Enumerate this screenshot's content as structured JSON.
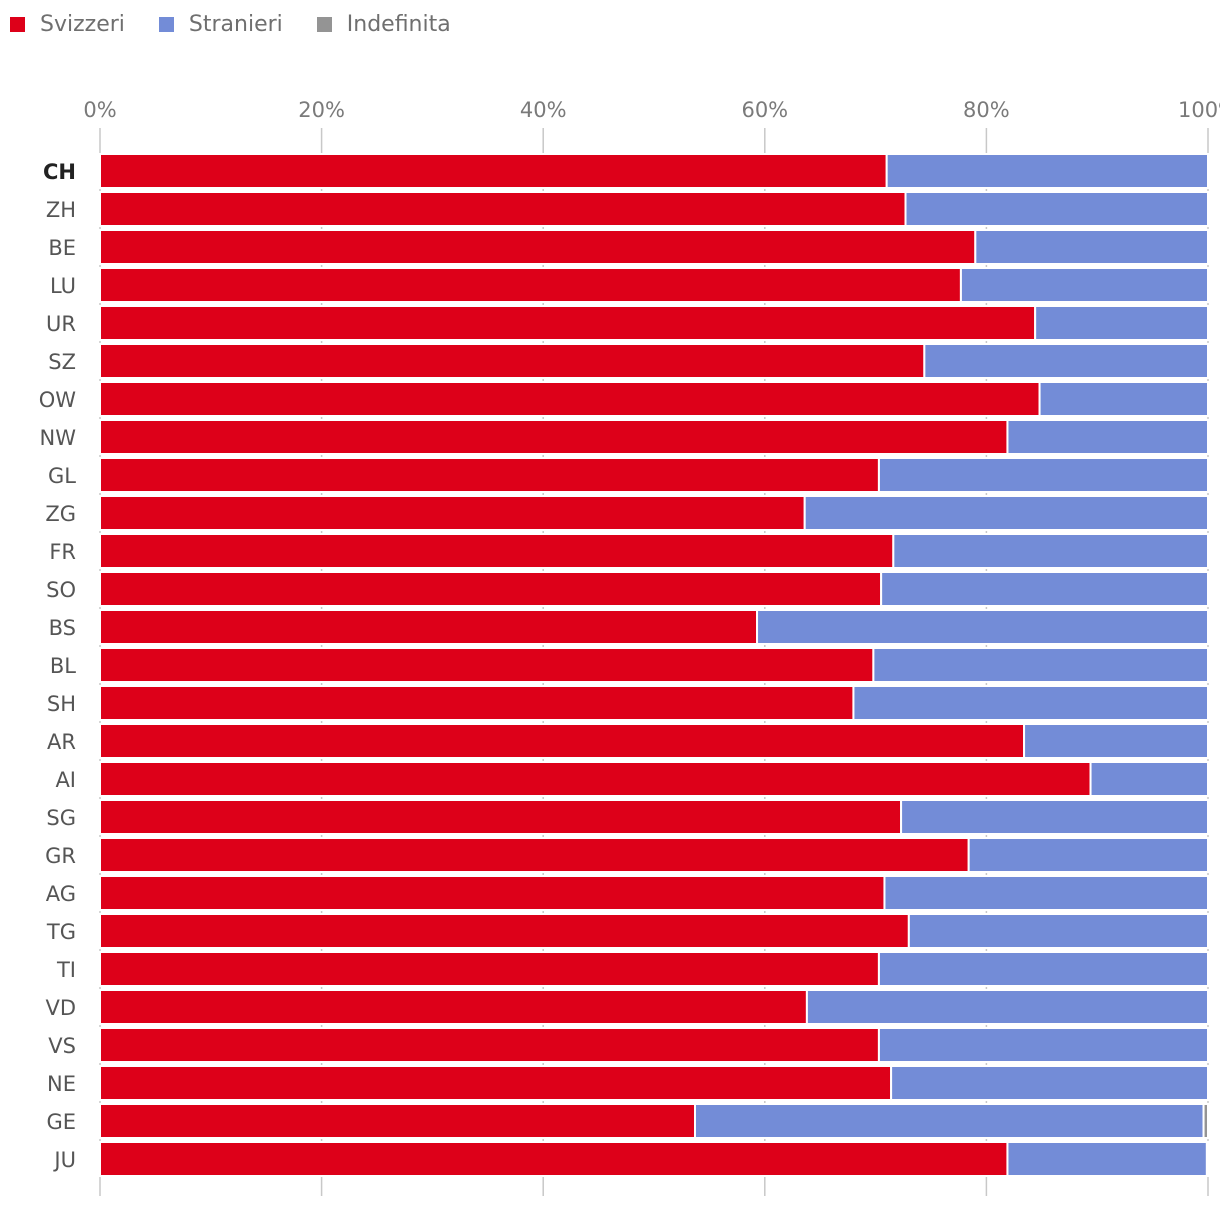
{
  "chart_data": {
    "type": "bar",
    "orientation": "horizontal",
    "stacked": true,
    "normalized": true,
    "title": "",
    "xlabel": "",
    "ylabel": "",
    "xlim": [
      0,
      100
    ],
    "tick_values": [
      0,
      20,
      40,
      60,
      80,
      100
    ],
    "tick_labels": [
      "0%",
      "20%",
      "40%",
      "60%",
      "80%",
      "100%"
    ],
    "grid": true,
    "legend_position": "top-left",
    "categories": [
      "CH",
      "ZH",
      "BE",
      "LU",
      "UR",
      "SZ",
      "OW",
      "NW",
      "GL",
      "ZG",
      "FR",
      "SO",
      "BS",
      "BL",
      "SH",
      "AR",
      "AI",
      "SG",
      "GR",
      "AG",
      "TG",
      "TI",
      "VD",
      "VS",
      "NE",
      "GE",
      "JU"
    ],
    "bold_categories": [
      "CH"
    ],
    "series": [
      {
        "name": "Svizzeri",
        "color": "#dd0019",
        "values": [
          71.0,
          72.7,
          79.0,
          77.7,
          84.4,
          74.4,
          84.8,
          81.9,
          70.3,
          63.6,
          71.6,
          70.5,
          59.3,
          69.8,
          68.0,
          83.4,
          89.4,
          72.3,
          78.4,
          70.8,
          73.0,
          70.3,
          63.8,
          70.3,
          71.4,
          53.7,
          81.9
        ]
      },
      {
        "name": "Stranieri",
        "color": "#738cd7",
        "values": [
          29.0,
          27.3,
          21.0,
          22.3,
          15.6,
          25.6,
          15.2,
          18.1,
          29.7,
          36.4,
          28.4,
          29.5,
          40.7,
          30.2,
          32.0,
          16.6,
          10.6,
          27.7,
          21.6,
          29.2,
          27.0,
          29.7,
          36.2,
          29.7,
          28.6,
          45.9,
          18.0
        ]
      },
      {
        "name": "Indefinita",
        "color": "#949494",
        "values": [
          0,
          0,
          0,
          0,
          0,
          0,
          0,
          0,
          0,
          0,
          0,
          0,
          0,
          0,
          0,
          0,
          0,
          0,
          0,
          0,
          0,
          0,
          0,
          0,
          0,
          0.4,
          0.1
        ]
      }
    ]
  }
}
